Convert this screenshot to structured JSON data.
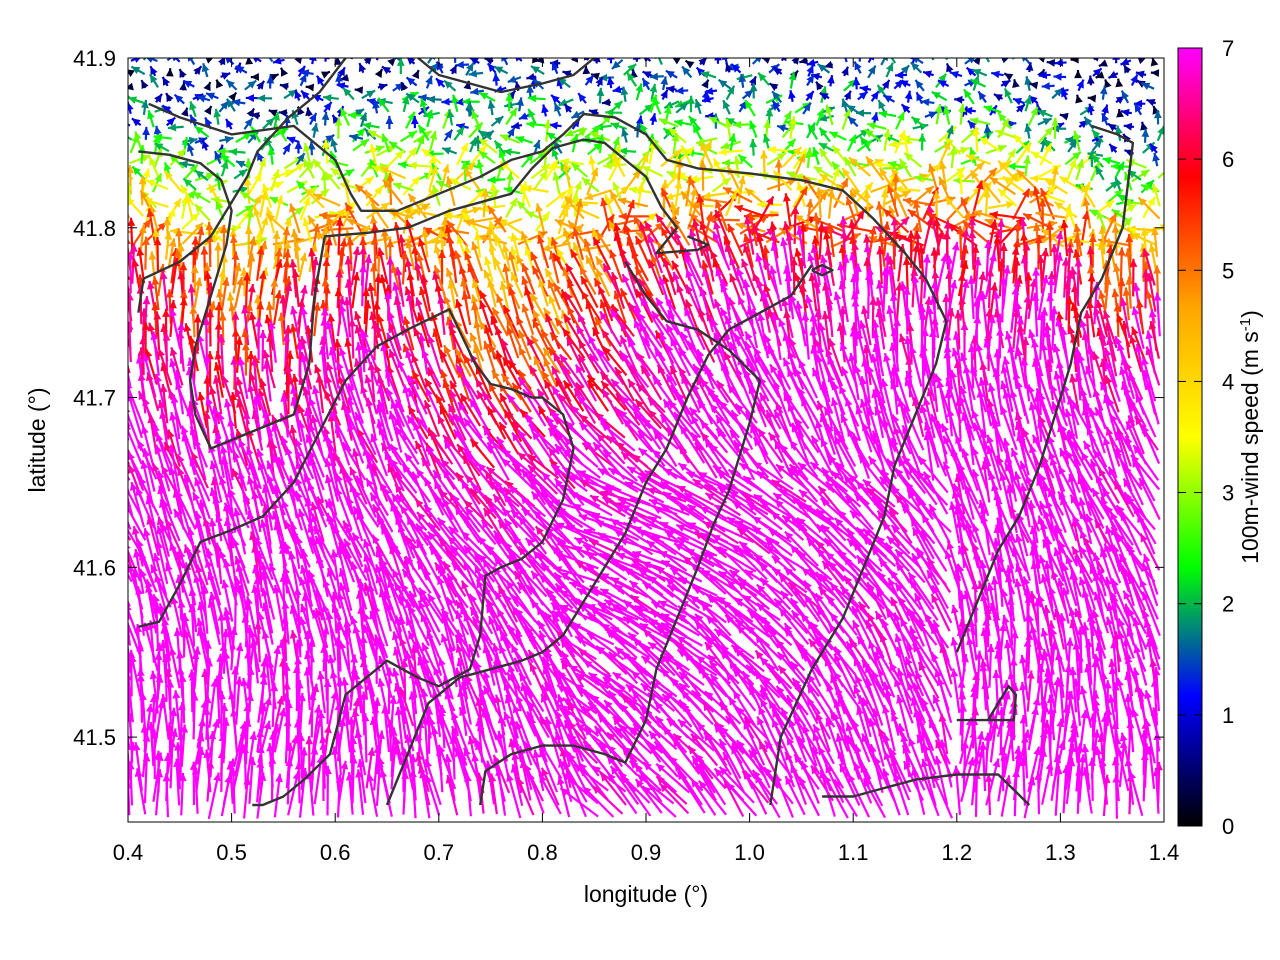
{
  "chart_data": {
    "type": "vector-field",
    "xlabel": "longitude (°)",
    "ylabel": "latitude (°)",
    "xlim": [
      0.4,
      1.4
    ],
    "ylim": [
      41.45,
      41.9
    ],
    "xticks": [
      "0.4",
      "0.5",
      "0.6",
      "0.7",
      "0.8",
      "0.9",
      "1.0",
      "1.1",
      "1.2",
      "1.3",
      "1.4"
    ],
    "xtick_values": [
      0.4,
      0.5,
      0.6,
      0.7,
      0.8,
      0.9,
      1.0,
      1.1,
      1.2,
      1.3,
      1.4
    ],
    "yticks": [
      "41.5",
      "41.6",
      "41.7",
      "41.8",
      "41.9"
    ],
    "ytick_values": [
      41.5,
      41.6,
      41.7,
      41.8,
      41.9
    ],
    "colorbar": {
      "label_main": "100m-wind speed (m s",
      "label_sup": "-1",
      "label_end": ")",
      "min": 0,
      "max": 7,
      "ticks": [
        "0",
        "1",
        "2",
        "3",
        "4",
        "5",
        "6",
        "7"
      ],
      "tick_values": [
        0,
        1,
        2,
        3,
        4,
        5,
        6,
        7
      ],
      "colors": [
        "#000000",
        "#0000ff",
        "#00ff00",
        "#ffff00",
        "#ffa500",
        "#ff0000",
        "#ff00ff"
      ]
    },
    "contour_color": "#333333",
    "contours": [
      [
        [
          0.41,
          41.565
        ],
        [
          0.43,
          41.568
        ],
        [
          0.45,
          41.59
        ],
        [
          0.47,
          41.615
        ],
        [
          0.5,
          41.622
        ],
        [
          0.53,
          41.63
        ],
        [
          0.56,
          41.65
        ],
        [
          0.585,
          41.68
        ],
        [
          0.61,
          41.71
        ],
        [
          0.64,
          41.73
        ],
        [
          0.67,
          41.74
        ],
        [
          0.71,
          41.752
        ],
        [
          0.735,
          41.72
        ],
        [
          0.75,
          41.708
        ]
      ],
      [
        [
          0.41,
          41.75
        ],
        [
          0.415,
          41.77
        ],
        [
          0.45,
          41.78
        ],
        [
          0.48,
          41.795
        ],
        [
          0.515,
          41.83
        ],
        [
          0.525,
          41.845
        ],
        [
          0.555,
          41.865
        ],
        [
          0.585,
          41.88
        ],
        [
          0.61,
          41.9
        ]
      ],
      [
        [
          0.42,
          41.873
        ],
        [
          0.45,
          41.865
        ],
        [
          0.5,
          41.855
        ],
        [
          0.56,
          41.86
        ],
        [
          0.6,
          41.84
        ],
        [
          0.615,
          41.82
        ],
        [
          0.625,
          41.81
        ],
        [
          0.66,
          41.81
        ],
        [
          0.7,
          41.82
        ],
        [
          0.74,
          41.83
        ],
        [
          0.77,
          41.84
        ],
        [
          0.8,
          41.845
        ],
        [
          0.82,
          41.855
        ],
        [
          0.84,
          41.867
        ],
        [
          0.87,
          41.865
        ],
        [
          0.9,
          41.855
        ],
        [
          0.92,
          41.84
        ],
        [
          0.95,
          41.835
        ],
        [
          1.0,
          41.832
        ],
        [
          1.05,
          41.828
        ],
        [
          1.09,
          41.822
        ],
        [
          1.12,
          41.805
        ],
        [
          1.15,
          41.785
        ],
        [
          1.17,
          41.77
        ],
        [
          1.19,
          41.745
        ],
        [
          1.18,
          41.72
        ],
        [
          1.16,
          41.69
        ],
        [
          1.14,
          41.66
        ],
        [
          1.13,
          41.63
        ],
        [
          1.11,
          41.6
        ],
        [
          1.09,
          41.57
        ],
        [
          1.06,
          41.54
        ],
        [
          1.03,
          41.5
        ],
        [
          1.02,
          41.46
        ]
      ],
      [
        [
          0.41,
          41.845
        ],
        [
          0.44,
          41.843
        ],
        [
          0.47,
          41.838
        ],
        [
          0.49,
          41.828
        ],
        [
          0.5,
          41.81
        ],
        [
          0.495,
          41.79
        ],
        [
          0.485,
          41.77
        ],
        [
          0.475,
          41.75
        ],
        [
          0.465,
          41.73
        ],
        [
          0.46,
          41.71
        ],
        [
          0.465,
          41.69
        ],
        [
          0.48,
          41.67
        ],
        [
          0.5,
          41.675
        ],
        [
          0.52,
          41.68
        ],
        [
          0.54,
          41.685
        ],
        [
          0.56,
          41.69
        ],
        [
          0.575,
          41.72
        ],
        [
          0.58,
          41.76
        ],
        [
          0.59,
          41.795
        ],
        [
          0.63,
          41.797
        ],
        [
          0.67,
          41.8
        ],
        [
          0.71,
          41.81
        ],
        [
          0.74,
          41.815
        ],
        [
          0.77,
          41.82
        ],
        [
          0.79,
          41.835
        ],
        [
          0.81,
          41.847
        ],
        [
          0.84,
          41.852
        ],
        [
          0.86,
          41.85
        ],
        [
          0.88,
          41.84
        ],
        [
          0.9,
          41.83
        ],
        [
          0.915,
          41.812
        ],
        [
          0.93,
          41.8
        ],
        [
          0.91,
          41.785
        ],
        [
          0.95,
          41.787
        ],
        [
          0.96,
          41.79
        ],
        [
          0.94,
          41.795
        ]
      ],
      [
        [
          0.75,
          41.708
        ],
        [
          0.77,
          41.705
        ],
        [
          0.79,
          41.7
        ],
        [
          0.8,
          41.7
        ],
        [
          0.82,
          41.69
        ],
        [
          0.83,
          41.67
        ],
        [
          0.82,
          41.64
        ],
        [
          0.8,
          41.615
        ],
        [
          0.78,
          41.605
        ],
        [
          0.76,
          41.6
        ],
        [
          0.745,
          41.595
        ],
        [
          0.74,
          41.56
        ],
        [
          0.73,
          41.54
        ],
        [
          0.7,
          41.53
        ],
        [
          0.68,
          41.535
        ],
        [
          0.65,
          41.545
        ],
        [
          0.63,
          41.535
        ],
        [
          0.61,
          41.525
        ],
        [
          0.595,
          41.49
        ],
        [
          0.57,
          41.475
        ],
        [
          0.55,
          41.465
        ],
        [
          0.53,
          41.46
        ],
        [
          0.52,
          41.46
        ]
      ],
      [
        [
          0.88,
          41.78
        ],
        [
          0.9,
          41.76
        ],
        [
          0.92,
          41.745
        ],
        [
          0.95,
          41.74
        ],
        [
          0.98,
          41.728
        ],
        [
          1.01,
          41.71
        ],
        [
          1.0,
          41.685
        ],
        [
          0.99,
          41.665
        ],
        [
          0.98,
          41.645
        ],
        [
          0.965,
          41.625
        ],
        [
          0.95,
          41.6
        ],
        [
          0.93,
          41.57
        ],
        [
          0.91,
          41.54
        ],
        [
          0.9,
          41.51
        ],
        [
          0.88,
          41.485
        ],
        [
          0.86,
          41.49
        ],
        [
          0.83,
          41.495
        ],
        [
          0.8,
          41.495
        ],
        [
          0.77,
          41.49
        ],
        [
          0.745,
          41.48
        ],
        [
          0.74,
          41.46
        ]
      ],
      [
        [
          0.65,
          41.46
        ],
        [
          0.67,
          41.49
        ],
        [
          0.69,
          41.52
        ],
        [
          0.72,
          41.535
        ],
        [
          0.75,
          41.54
        ],
        [
          0.78,
          41.545
        ],
        [
          0.8,
          41.55
        ],
        [
          0.82,
          41.56
        ],
        [
          0.84,
          41.58
        ],
        [
          0.86,
          41.6
        ],
        [
          0.88,
          41.62
        ],
        [
          0.9,
          41.65
        ],
        [
          0.92,
          41.67
        ],
        [
          0.94,
          41.7
        ],
        [
          0.96,
          41.725
        ],
        [
          0.98,
          41.74
        ],
        [
          1.01,
          41.75
        ],
        [
          1.04,
          41.76
        ],
        [
          1.06,
          41.778
        ]
      ],
      [
        [
          1.07,
          41.465
        ],
        [
          1.1,
          41.465
        ],
        [
          1.13,
          41.47
        ],
        [
          1.16,
          41.475
        ],
        [
          1.2,
          41.478
        ],
        [
          1.24,
          41.478
        ],
        [
          1.27,
          41.46
        ]
      ],
      [
        [
          1.2,
          41.51
        ],
        [
          1.23,
          41.51
        ],
        [
          1.255,
          41.51
        ],
        [
          1.257,
          41.525
        ],
        [
          1.25,
          41.53
        ],
        [
          1.24,
          41.52
        ],
        [
          1.23,
          41.51
        ]
      ],
      [
        [
          1.33,
          41.86
        ],
        [
          1.355,
          41.855
        ],
        [
          1.37,
          41.85
        ],
        [
          1.36,
          41.8
        ],
        [
          1.34,
          41.77
        ],
        [
          1.32,
          41.75
        ],
        [
          1.31,
          41.72
        ],
        [
          1.3,
          41.7
        ],
        [
          1.28,
          41.66
        ],
        [
          1.26,
          41.63
        ],
        [
          1.24,
          41.61
        ],
        [
          1.22,
          41.58
        ],
        [
          1.2,
          41.55
        ]
      ],
      [
        [
          0.68,
          41.9
        ],
        [
          0.7,
          41.89
        ],
        [
          0.73,
          41.885
        ],
        [
          0.76,
          41.88
        ],
        [
          0.8,
          41.885
        ],
        [
          0.83,
          41.89
        ],
        [
          0.85,
          41.9
        ]
      ],
      [
        [
          1.06,
          41.775
        ],
        [
          1.07,
          41.772
        ],
        [
          1.08,
          41.775
        ],
        [
          1.07,
          41.778
        ],
        [
          1.06,
          41.775
        ]
      ]
    ]
  }
}
